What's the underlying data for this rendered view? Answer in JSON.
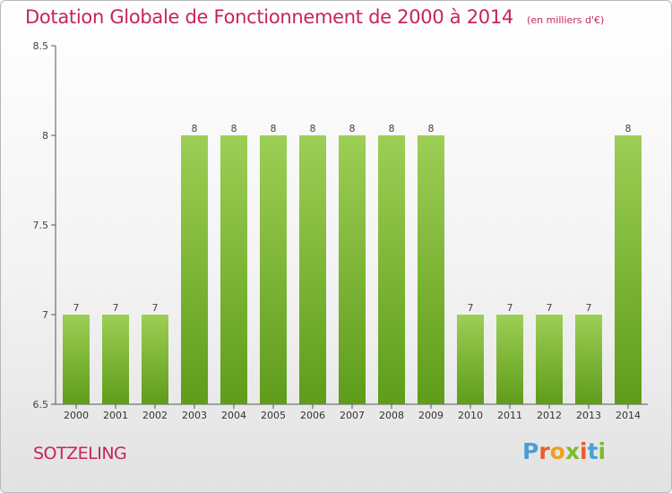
{
  "header": {
    "title": "Dotation Globale de Fonctionnement de 2000 à 2014",
    "unit": "(en milliers d'€)"
  },
  "footer": {
    "commune": "SOTZELING",
    "logo_letters": [
      "P",
      "r",
      "o",
      "x",
      "i",
      "t",
      "i"
    ],
    "logo_colors": [
      "#4a9fd8",
      "#e85d2a",
      "#f0a020",
      "#7dbb2e",
      "#e85d2a",
      "#4a9fd8",
      "#7dbb2e"
    ]
  },
  "colors": {
    "title": "#c8245a",
    "bar_top": "#9ccf55",
    "bar_bottom": "#5f9c1a",
    "axis": "#555555"
  },
  "chart_data": {
    "type": "bar",
    "categories": [
      "2000",
      "2001",
      "2002",
      "2003",
      "2004",
      "2005",
      "2006",
      "2007",
      "2008",
      "2009",
      "2010",
      "2011",
      "2012",
      "2013",
      "2014"
    ],
    "values": [
      7,
      7,
      7,
      8,
      8,
      8,
      8,
      8,
      8,
      8,
      7,
      7,
      7,
      7,
      8
    ],
    "value_labels": [
      "7",
      "7",
      "7",
      "8",
      "8",
      "8",
      "8",
      "8",
      "8",
      "8",
      "7",
      "7",
      "7",
      "7",
      "8"
    ],
    "y_ticks": [
      "6.5",
      "7",
      "7.5",
      "8",
      "8.5"
    ],
    "ylim": [
      6.5,
      8.5
    ],
    "grid": false,
    "legend": "none"
  }
}
